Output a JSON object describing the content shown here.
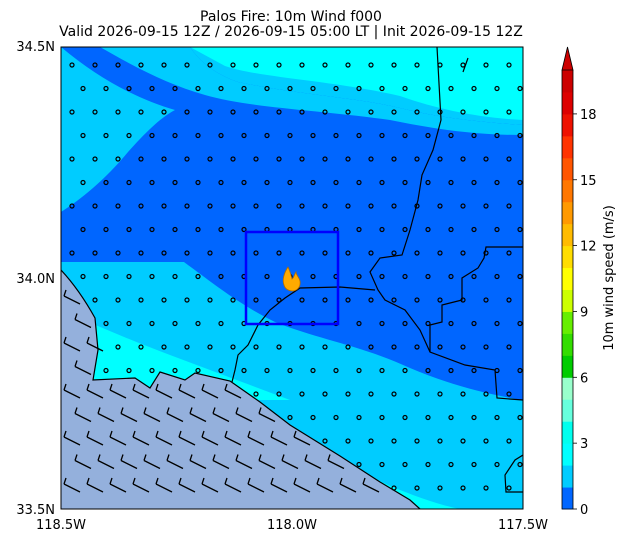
{
  "title": "Palos Fire: 10m Wind f000",
  "subtitle": "Valid 2026-09-15 12Z / 2026-09-15 05:00 LT | Init 2026-09-15 12Z",
  "map": {
    "lat_ticks": [
      "34.5N",
      "34.0N",
      "33.5N"
    ],
    "lon_ticks": [
      "118.5W",
      "118.0W",
      "117.5W"
    ],
    "lon_range": [
      -118.5,
      -117.5
    ],
    "lat_range": [
      33.5,
      34.5
    ],
    "highlight_box_color": "#0000ff",
    "fire_marker": "fire-icon",
    "colors": {
      "ocean": "#94b0dc",
      "speed_0_1": "#0066ff",
      "speed_1_2": "#00ccff",
      "speed_2_3": "#00ffff"
    }
  },
  "colorbar": {
    "label": "10m wind speed (m/s)",
    "ticks": [
      "0",
      "3",
      "6",
      "9",
      "12",
      "15",
      "18"
    ],
    "tick_values": [
      0,
      3,
      6,
      9,
      12,
      15,
      18
    ],
    "min": 0,
    "max": 20,
    "extend": "max",
    "colors": [
      "#0066ff",
      "#00ccff",
      "#00ffff",
      "#00ffee",
      "#66ffdd",
      "#99ffcc",
      "#00cc00",
      "#33dd00",
      "#66ee00",
      "#ccff00",
      "#ffff00",
      "#ffdd00",
      "#ffbb00",
      "#ff9900",
      "#ff7700",
      "#ff5500",
      "#ff3300",
      "#ee1100",
      "#dd0000",
      "#cc0000"
    ]
  }
}
